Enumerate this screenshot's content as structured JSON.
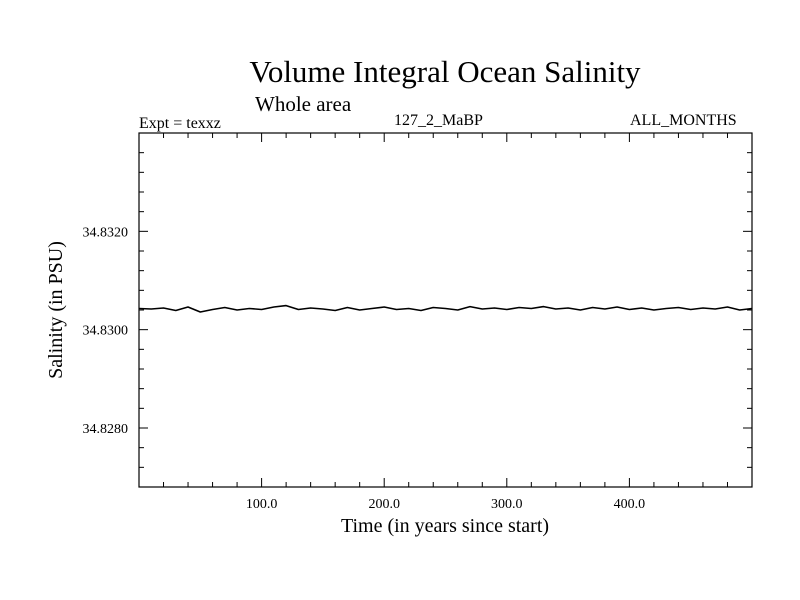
{
  "header": {
    "title": "Volume Integral Ocean Salinity",
    "subtitle": "Whole area",
    "experiment": "Expt = texxz",
    "run_id": "127_2_MaBP",
    "period": "ALL_MONTHS"
  },
  "chart_data": {
    "type": "line",
    "title": "Volume Integral Ocean Salinity",
    "subtitle": "Whole area",
    "xlabel": "Time (in years since start)",
    "ylabel": "Salinity (in PSU)",
    "xlim": [
      0,
      500
    ],
    "ylim": [
      34.8268,
      34.834
    ],
    "xticks": [
      100,
      200,
      300,
      400
    ],
    "xtick_labels": [
      "100.0",
      "200.0",
      "300.0",
      "400.0"
    ],
    "yticks": [
      34.828,
      34.83,
      34.832
    ],
    "ytick_labels": [
      "34.8280",
      "34.8300",
      "34.8320"
    ],
    "grid": false,
    "series": [
      {
        "name": "salinity",
        "x": [
          0,
          10,
          20,
          30,
          40,
          50,
          60,
          70,
          80,
          90,
          100,
          110,
          120,
          130,
          140,
          150,
          160,
          170,
          180,
          190,
          200,
          210,
          220,
          230,
          240,
          250,
          260,
          270,
          280,
          290,
          300,
          310,
          320,
          330,
          340,
          350,
          360,
          370,
          380,
          390,
          400,
          410,
          420,
          430,
          440,
          450,
          460,
          470,
          480,
          490,
          500
        ],
        "values": [
          34.83043,
          34.83042,
          34.83044,
          34.83039,
          34.83046,
          34.83036,
          34.83041,
          34.83045,
          34.8304,
          34.83043,
          34.83041,
          34.83046,
          34.83049,
          34.83041,
          34.83044,
          34.83042,
          34.83039,
          34.83045,
          34.8304,
          34.83043,
          34.83046,
          34.83041,
          34.83043,
          34.83039,
          34.83045,
          34.83043,
          34.8304,
          34.83047,
          34.83042,
          34.83044,
          34.83041,
          34.83045,
          34.83043,
          34.83047,
          34.83042,
          34.83044,
          34.8304,
          34.83045,
          34.83042,
          34.83046,
          34.83041,
          34.83044,
          34.8304,
          34.83043,
          34.83045,
          34.83041,
          34.83044,
          34.83042,
          34.83046,
          34.8304,
          34.83043
        ]
      }
    ]
  }
}
